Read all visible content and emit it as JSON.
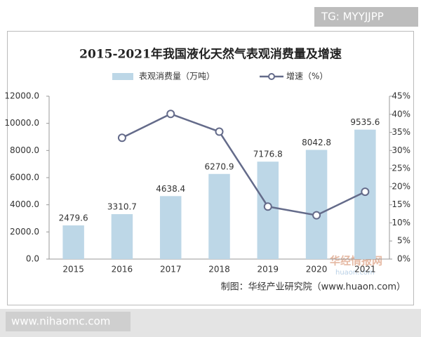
{
  "watermark": "TG: MYYJJPP",
  "site": "www.nihaomc.com",
  "stamp": "华经情报网",
  "stamp_url": "huaon.com",
  "chart_data": {
    "type": "bar",
    "title": "2015-2021年我国液化天然气表观消费量及增速",
    "source": "制图：华经产业研究院（www.huaon.com）",
    "categories": [
      "2015",
      "2016",
      "2017",
      "2018",
      "2019",
      "2020",
      "2021"
    ],
    "series": [
      {
        "name": "表观消费量（万吨）",
        "type": "bar",
        "color": "#bdd7e7",
        "values": [
          2479.6,
          3310.7,
          4638.4,
          6270.9,
          7176.8,
          8042.8,
          9535.6
        ]
      },
      {
        "name": "增速（%）",
        "type": "line",
        "axis": "y2",
        "color": "#646b8a",
        "values": [
          null,
          33.5,
          40.1,
          35.2,
          14.5,
          12.1,
          18.6
        ]
      }
    ],
    "ylim": [
      0,
      12000
    ],
    "yticks": [
      {
        "value": 0,
        "label": "0.0"
      },
      {
        "value": 2000,
        "label": "2000.0"
      },
      {
        "value": 4000,
        "label": "4000.0"
      },
      {
        "value": 6000,
        "label": "6000.0"
      },
      {
        "value": 8000,
        "label": "8000.0"
      },
      {
        "value": 10000,
        "label": "10000.0"
      },
      {
        "value": 12000,
        "label": "12000.0"
      }
    ],
    "y2lim": [
      0,
      45
    ],
    "y2ticks": [
      {
        "value": 0,
        "label": "0%"
      },
      {
        "value": 5,
        "label": "5%"
      },
      {
        "value": 10,
        "label": "10%"
      },
      {
        "value": 15,
        "label": "15%"
      },
      {
        "value": 20,
        "label": "20%"
      },
      {
        "value": 25,
        "label": "25%"
      },
      {
        "value": 30,
        "label": "30%"
      },
      {
        "value": 35,
        "label": "35%"
      },
      {
        "value": 40,
        "label": "40%"
      },
      {
        "value": 45,
        "label": "45%"
      }
    ],
    "legend": "top"
  }
}
